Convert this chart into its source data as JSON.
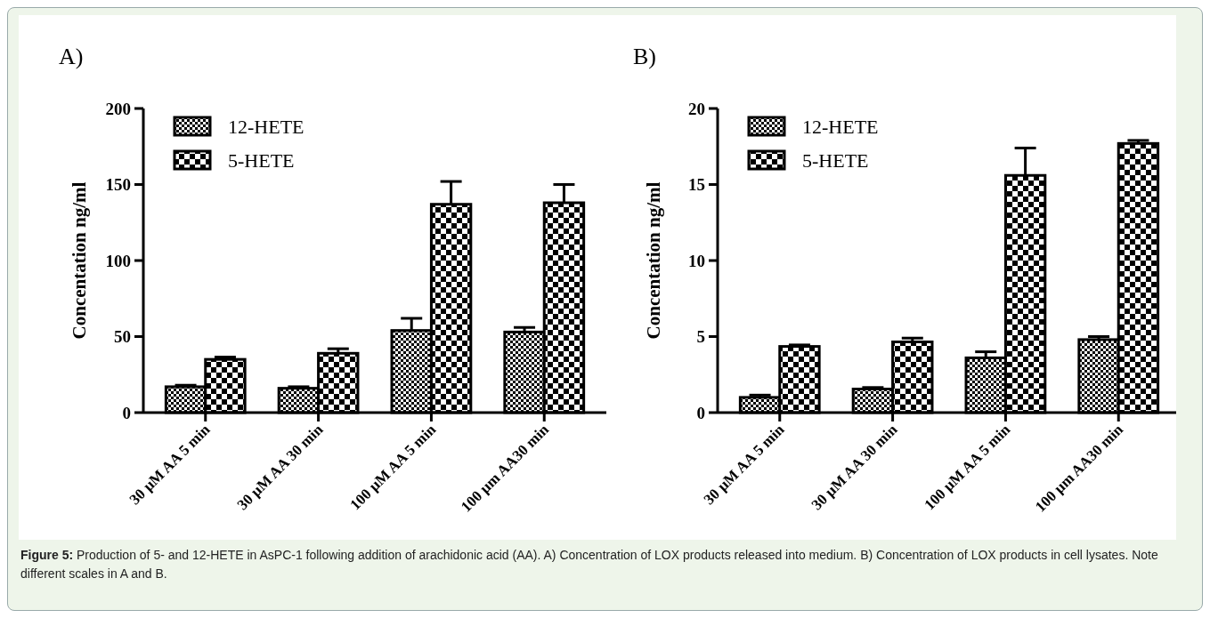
{
  "chart_data": [
    {
      "type": "bar",
      "title": "A)",
      "ylabel": "Concentation ng/ml",
      "categories": [
        "30 µM AA 5 min",
        "30 µM AA 30 min",
        "100 µM AA 5 min",
        "100 µm AA30 min"
      ],
      "series": [
        {
          "name": "12-HETE",
          "color": "#000000",
          "values": [
            17,
            16,
            54,
            53
          ],
          "errors": [
            1,
            1,
            8,
            3
          ]
        },
        {
          "name": "5-HETE",
          "color": "#000000",
          "values": [
            35,
            39,
            137,
            138
          ],
          "errors": [
            1.5,
            3,
            15,
            12
          ]
        }
      ],
      "ylim": [
        0,
        200
      ],
      "yticks": [
        0,
        50,
        100,
        150,
        200
      ],
      "grid": false,
      "legend": "top left",
      "annotations": [
        "Figure 5: Production of 5- and 12-HETE in AsPC-1 following addition of arachidonic acid (AA). A) Concentration of LOX products released into medium. B) Concentration of LOX products in cell lysates. Note different scales in A and B."
      ]
    },
    {
      "type": "bar",
      "title": "B)",
      "ylabel": "Concentation ng/ml",
      "categories": [
        "30 µM AA 5 min",
        "30 µM AA 30 min",
        "100 µM AA 5 min",
        "100 µm AA30 min"
      ],
      "series": [
        {
          "name": "12-HETE",
          "color": "#000000",
          "values": [
            1.0,
            1.55,
            3.6,
            4.8
          ],
          "errors": [
            0.15,
            0.1,
            0.4,
            0.2
          ]
        },
        {
          "name": "5-HETE",
          "color": "#000000",
          "values": [
            4.35,
            4.65,
            15.6,
            17.7
          ],
          "errors": [
            0.1,
            0.25,
            1.8,
            0.2
          ]
        }
      ],
      "ylim": [
        0,
        20
      ],
      "yticks": [
        0,
        5,
        10,
        15,
        20
      ],
      "grid": false,
      "legend": "top left"
    }
  ]
}
